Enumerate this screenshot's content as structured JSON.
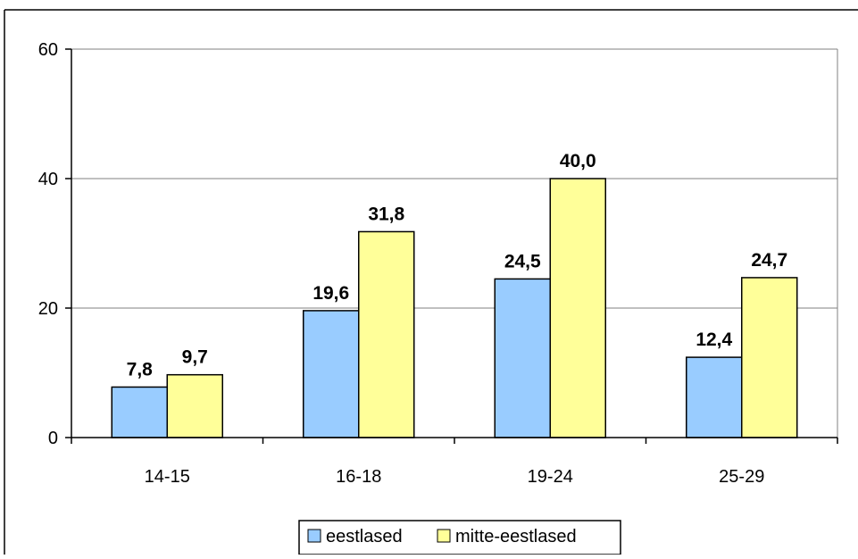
{
  "chart_data": {
    "type": "bar",
    "categories": [
      "14-15",
      "16-18",
      "19-24",
      "25-29"
    ],
    "series": [
      {
        "name": "eestlased",
        "values": [
          7.8,
          19.6,
          24.5,
          12.4
        ],
        "labels": [
          "7,8",
          "19,6",
          "24,5",
          "12,4"
        ],
        "color": "#99ccff"
      },
      {
        "name": "mitte-eestlased",
        "values": [
          9.7,
          31.8,
          40.0,
          24.7
        ],
        "labels": [
          "9,7",
          "31,8",
          "40,0",
          "24,7"
        ],
        "color": "#ffff99"
      }
    ],
    "ylim": [
      0,
      60
    ],
    "yticks": [
      0,
      20,
      40,
      60
    ],
    "ytick_labels": [
      "0",
      "20",
      "40",
      "60"
    ],
    "grid": true,
    "legend_position": "bottom"
  }
}
